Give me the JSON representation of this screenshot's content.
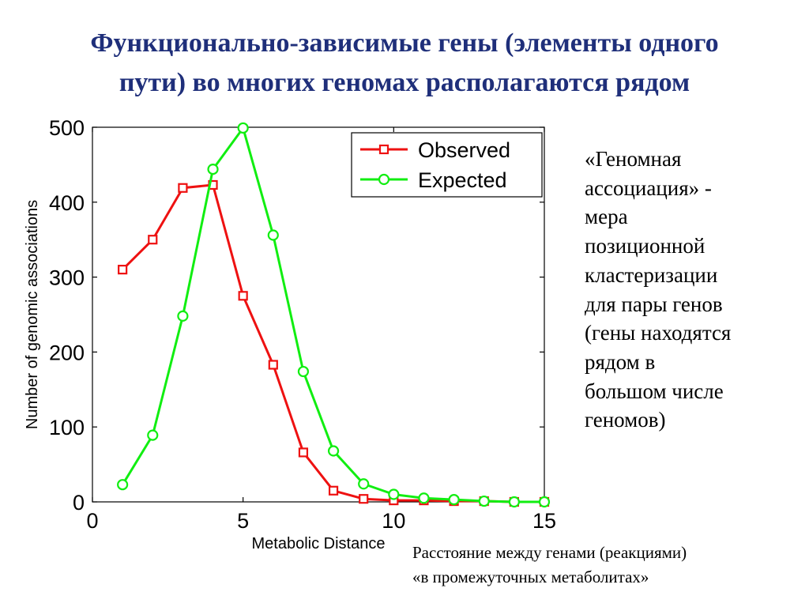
{
  "slide": {
    "title_lines": [
      "Функционально-зависимые гены (элементы одного",
      "пути) во многих геномах располагаются рядом"
    ],
    "side_text_lines": [
      "«Геномная",
      "ассоциация» -",
      "мера",
      "позиционной",
      "кластеризации",
      "для пары генов",
      "(гены находятся",
      "рядом в",
      "большом числе",
      "геномов)"
    ],
    "caption_lines": [
      "Расстояние между генами (реакциями)",
      "«в промежуточных метаболитах»"
    ],
    "title_color": "#1f2f7a"
  },
  "chart_data": {
    "type": "line",
    "xlabel": "Metabolic Distance",
    "ylabel": "Number of genomic associations",
    "xlim": [
      0,
      15
    ],
    "ylim": [
      0,
      500
    ],
    "x_ticks": [
      0,
      5,
      10,
      15
    ],
    "y_ticks": [
      0,
      100,
      200,
      300,
      400,
      500
    ],
    "grid": false,
    "legend_position": "top-right",
    "series": [
      {
        "name": "Observed",
        "color": "#ee1111",
        "marker": "square",
        "x": [
          1,
          2,
          3,
          4,
          5,
          6,
          7,
          8,
          9,
          10,
          11,
          12,
          13,
          14,
          15
        ],
        "values": [
          310,
          350,
          419,
          423,
          275,
          183,
          66,
          15,
          4,
          2,
          2,
          1,
          1,
          0,
          0
        ]
      },
      {
        "name": "Expected",
        "color": "#11ee11",
        "marker": "circle",
        "x": [
          1,
          2,
          3,
          4,
          5,
          6,
          7,
          8,
          9,
          10,
          11,
          12,
          13,
          14,
          15
        ],
        "values": [
          23,
          89,
          248,
          444,
          499,
          356,
          174,
          68,
          24,
          10,
          5,
          3,
          1,
          0,
          0
        ]
      }
    ]
  }
}
